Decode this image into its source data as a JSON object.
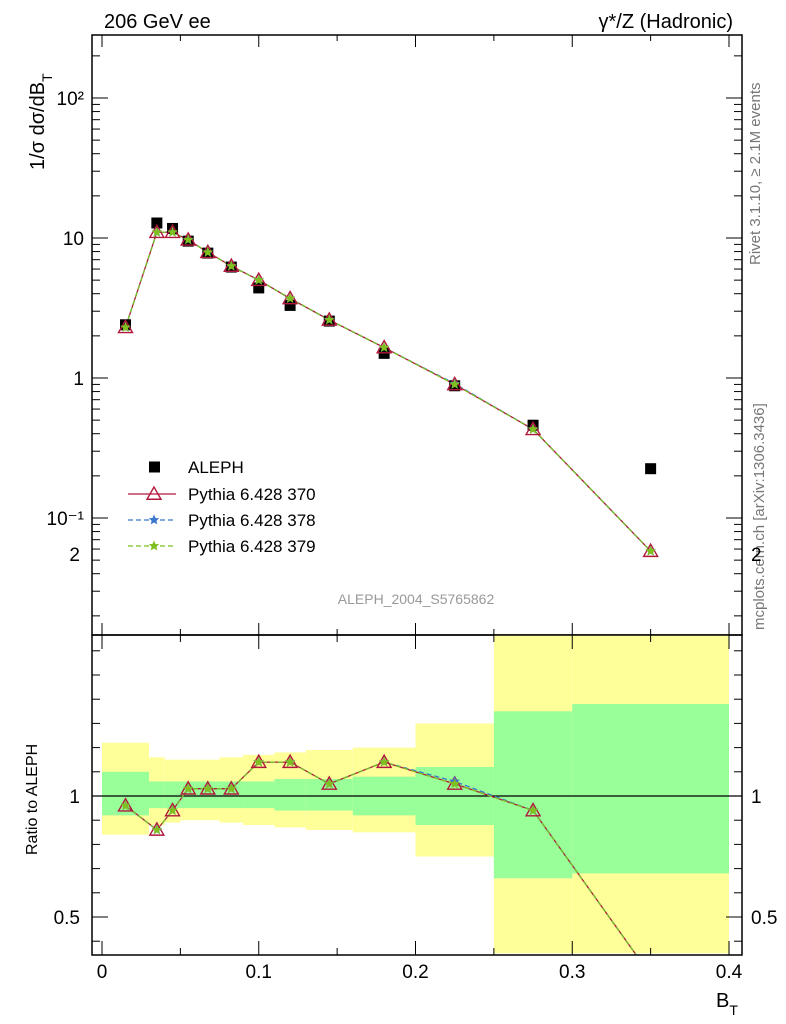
{
  "header": {
    "left": "206 GeV ee",
    "right": "γ*/Z (Hadronic)"
  },
  "side_text": {
    "rivet": "Rivet 3.1.10, ≥ 2.1M events",
    "mcplots": "mcplots.cern.ch [arXiv:1306.3436]"
  },
  "analysis_id": "ALEPH_2004_S5765862",
  "chart_data": [
    {
      "type": "scatter",
      "panel": "main",
      "ylabel": "1/σ dσ/dB_T",
      "yscale": "log",
      "ylim": [
        0.018,
        280
      ],
      "xlim": [
        -0.008,
        0.4
      ],
      "ytick_labels": [
        "10⁻¹",
        "1",
        "10",
        "10²"
      ],
      "legend_position": "lower-left",
      "series": [
        {
          "name": "ALEPH",
          "style": "square",
          "color": "#000000",
          "x": [
            0.015,
            0.035,
            0.045,
            0.055,
            0.0675,
            0.0825,
            0.1,
            0.12,
            0.145,
            0.18,
            0.225,
            0.275,
            0.35
          ],
          "y": [
            2.4,
            12.8,
            11.7,
            9.5,
            7.8,
            6.2,
            4.4,
            3.3,
            2.55,
            1.5,
            0.88,
            0.46,
            0.225
          ]
        },
        {
          "name": "Pythia 6.428 370",
          "style": "triangle",
          "color": "#b2183b",
          "x": [
            0.015,
            0.035,
            0.045,
            0.055,
            0.0675,
            0.0825,
            0.1,
            0.12,
            0.145,
            0.18,
            0.225,
            0.275,
            0.35
          ],
          "y": [
            2.3,
            11.0,
            11.0,
            9.7,
            7.9,
            6.3,
            5.0,
            3.7,
            2.6,
            1.65,
            0.9,
            0.43,
            0.058
          ]
        },
        {
          "name": "Pythia 6.428 378",
          "style": "star-dashed",
          "color": "#3a78d0",
          "x": [
            0.015,
            0.035,
            0.045,
            0.055,
            0.0675,
            0.0825,
            0.1,
            0.12,
            0.145,
            0.18,
            0.225,
            0.275,
            0.35
          ],
          "y": [
            2.3,
            11.0,
            11.0,
            9.7,
            7.9,
            6.3,
            5.0,
            3.7,
            2.6,
            1.65,
            0.91,
            0.43,
            0.058
          ]
        },
        {
          "name": "Pythia 6.428 379",
          "style": "star-dashed",
          "color": "#7fbf1f",
          "x": [
            0.015,
            0.035,
            0.045,
            0.055,
            0.0675,
            0.0825,
            0.1,
            0.12,
            0.145,
            0.18,
            0.225,
            0.275,
            0.35
          ],
          "y": [
            2.3,
            11.0,
            11.0,
            9.7,
            7.9,
            6.3,
            5.0,
            3.7,
            2.6,
            1.65,
            0.9,
            0.43,
            0.058
          ]
        }
      ]
    },
    {
      "type": "line",
      "panel": "ratio",
      "xlabel": "B_T",
      "ylabel": "Ratio to ALEPH",
      "ylim": [
        0.35,
        2.3
      ],
      "xlim": [
        -0.008,
        0.4
      ],
      "xtick_labels": [
        "0",
        "0.1",
        "0.2",
        "0.3",
        "0.4"
      ],
      "ytick_labels": [
        "0.5",
        "1",
        "2"
      ],
      "bands": {
        "bin_edges": [
          0.0,
          0.03,
          0.04,
          0.05,
          0.06,
          0.075,
          0.09,
          0.11,
          0.13,
          0.16,
          0.2,
          0.25,
          0.3,
          0.4
        ],
        "inner": [
          [
            0.92,
            1.1
          ],
          [
            0.95,
            1.06
          ],
          [
            0.95,
            1.06
          ],
          [
            0.95,
            1.06
          ],
          [
            0.95,
            1.06
          ],
          [
            0.95,
            1.06
          ],
          [
            0.95,
            1.06
          ],
          [
            0.94,
            1.07
          ],
          [
            0.94,
            1.07
          ],
          [
            0.92,
            1.08
          ],
          [
            0.88,
            1.12
          ],
          [
            0.66,
            1.35
          ],
          [
            0.68,
            1.38
          ]
        ],
        "outer": [
          [
            0.84,
            1.22
          ],
          [
            0.88,
            1.16
          ],
          [
            0.89,
            1.15
          ],
          [
            0.9,
            1.15
          ],
          [
            0.9,
            1.15
          ],
          [
            0.89,
            1.16
          ],
          [
            0.88,
            1.17
          ],
          [
            0.87,
            1.18
          ],
          [
            0.86,
            1.19
          ],
          [
            0.85,
            1.2
          ],
          [
            0.75,
            1.3
          ],
          [
            0.35,
            1.83
          ],
          [
            0.35,
            1.95
          ]
        ]
      },
      "series": [
        {
          "name": "Pythia 6.428 370",
          "color": "#b2183b",
          "x": [
            0.015,
            0.035,
            0.045,
            0.055,
            0.0675,
            0.0825,
            0.1,
            0.12,
            0.145,
            0.18,
            0.225,
            0.275,
            0.35
          ],
          "y": [
            0.96,
            0.86,
            0.94,
            1.03,
            1.03,
            1.03,
            1.14,
            1.14,
            1.05,
            1.14,
            1.05,
            0.94,
            0.26
          ]
        },
        {
          "name": "Pythia 6.428 378",
          "color": "#3a78d0",
          "x": [
            0.015,
            0.035,
            0.045,
            0.055,
            0.0675,
            0.0825,
            0.1,
            0.12,
            0.145,
            0.18,
            0.225,
            0.275,
            0.35
          ],
          "y": [
            0.96,
            0.86,
            0.94,
            1.03,
            1.03,
            1.03,
            1.14,
            1.14,
            1.05,
            1.14,
            1.06,
            0.94,
            0.26
          ]
        },
        {
          "name": "Pythia 6.428 379",
          "color": "#7fbf1f",
          "x": [
            0.015,
            0.035,
            0.045,
            0.055,
            0.0675,
            0.0825,
            0.1,
            0.12,
            0.145,
            0.18,
            0.225,
            0.275,
            0.35
          ],
          "y": [
            0.96,
            0.86,
            0.94,
            1.03,
            1.03,
            1.03,
            1.14,
            1.14,
            1.05,
            1.14,
            1.05,
            0.94,
            0.26
          ]
        }
      ]
    }
  ]
}
